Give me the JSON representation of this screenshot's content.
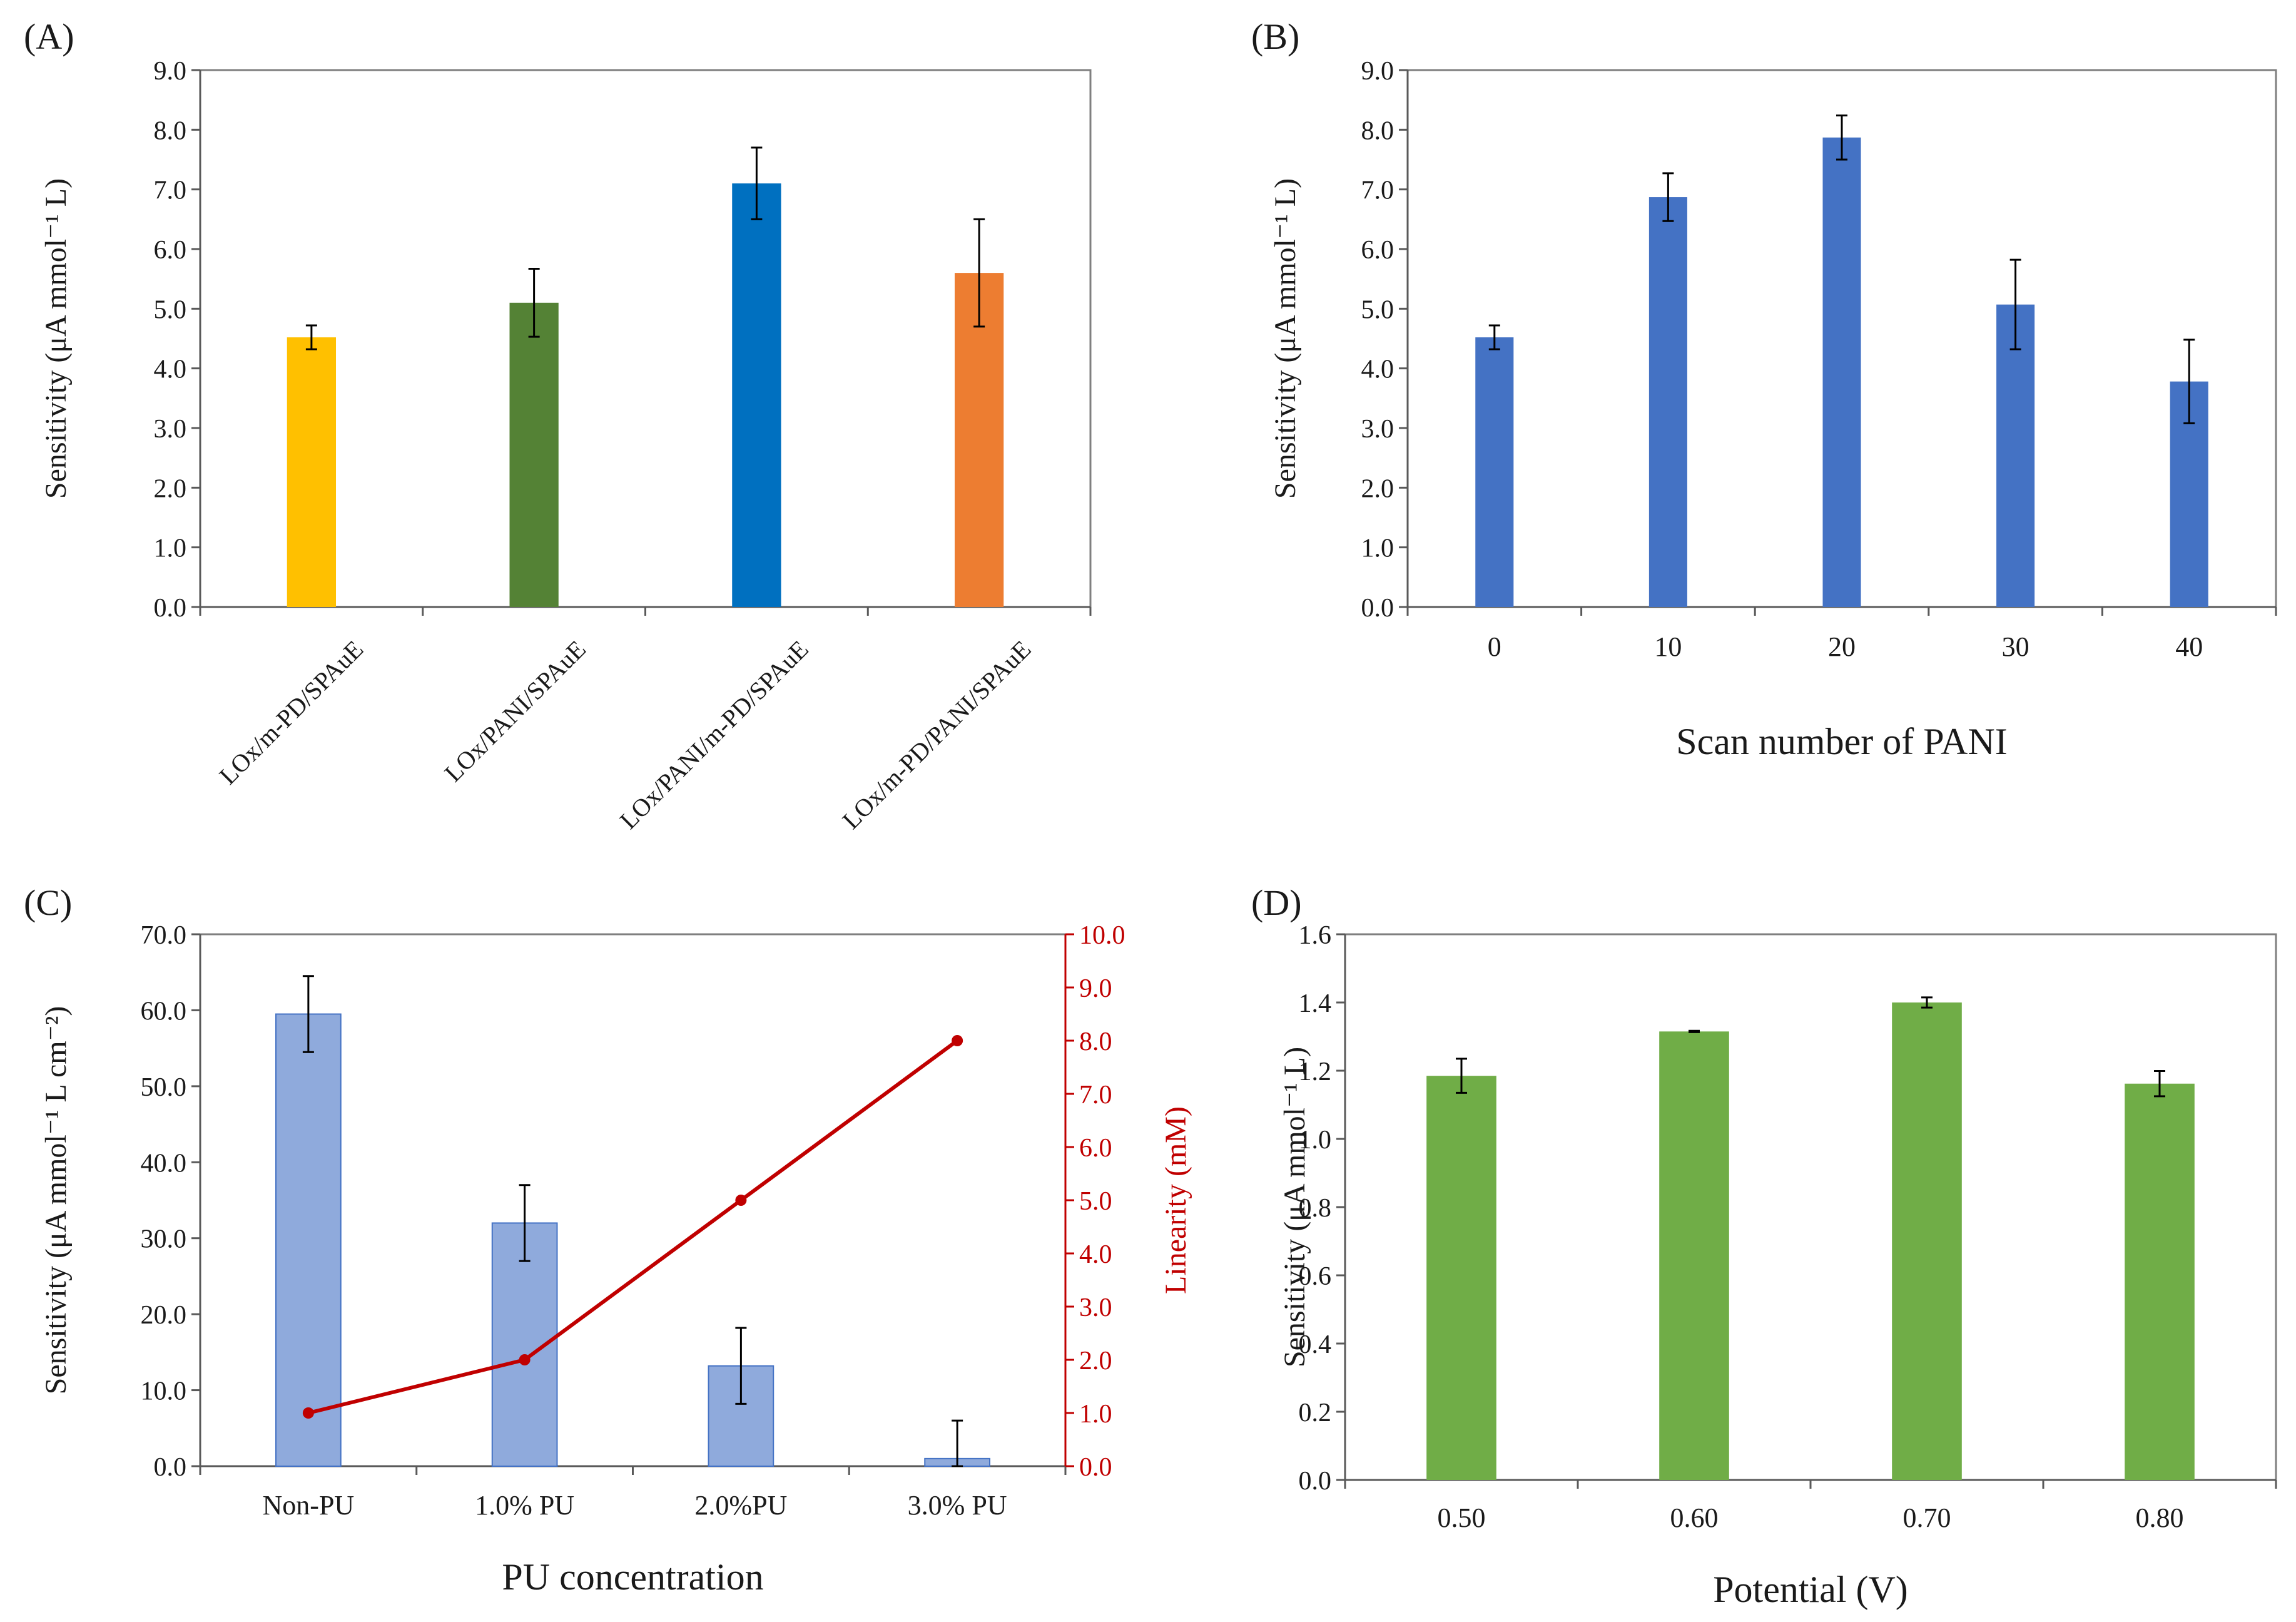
{
  "chart_data": [
    {
      "panel": "(A)",
      "type": "bar",
      "title": "",
      "xlabel": "",
      "ylabel": "Sensitivity (μA mmol⁻¹ L)",
      "categories": [
        "LOx/m-PD/SPAuE",
        "LOx/PANI/SPAuE",
        "LOx/PANI/m-PD/SPAuE",
        "LOx/m-PD/PANI/SPAuE"
      ],
      "values": [
        4.52,
        5.1,
        7.1,
        5.6
      ],
      "errors": [
        0.2,
        0.57,
        0.6,
        0.9
      ],
      "bar_colors": [
        "#ffc000",
        "#548235",
        "#0070c0",
        "#ed7d31"
      ],
      "ylim": [
        0,
        9
      ],
      "yticks": [
        "0.0",
        "1.0",
        "2.0",
        "3.0",
        "4.0",
        "5.0",
        "6.0",
        "7.0",
        "8.0",
        "9.0"
      ],
      "grid": false
    },
    {
      "panel": "(B)",
      "type": "bar",
      "title": "",
      "xlabel": "Scan number of PANI",
      "ylabel": "Sensitivity (μA mmol⁻¹ L)",
      "categories": [
        "0",
        "10",
        "20",
        "30",
        "40"
      ],
      "values": [
        4.52,
        6.87,
        7.87,
        5.07,
        3.78
      ],
      "errors": [
        0.2,
        0.4,
        0.37,
        0.75,
        0.7
      ],
      "bar_colors": [
        "#4472c4"
      ],
      "ylim": [
        0,
        9
      ],
      "yticks": [
        "0.0",
        "1.0",
        "2.0",
        "3.0",
        "4.0",
        "5.0",
        "6.0",
        "7.0",
        "8.0",
        "9.0"
      ],
      "grid": false
    },
    {
      "panel": "(C)",
      "type": "bar",
      "title": "",
      "xlabel": "PU concentration",
      "ylabel": "Sensitivity (μA mmol⁻¹ L cm⁻²)",
      "categories": [
        "Non-PU",
        "1.0% PU",
        "2.0%PU",
        "3.0% PU"
      ],
      "values": [
        59.5,
        32.0,
        13.2,
        1.0
      ],
      "errors": [
        5.0,
        5.0,
        5.0,
        5.0
      ],
      "bar_colors": [
        "#8faadc"
      ],
      "ylim": [
        0,
        70
      ],
      "yticks": [
        "0.0",
        "10.0",
        "20.0",
        "30.0",
        "40.0",
        "50.0",
        "60.0",
        "70.0"
      ],
      "secondary": {
        "type": "line",
        "name": "Linearity",
        "ylabel": "Linearity (mM)",
        "values": [
          1,
          2,
          5,
          8
        ],
        "color": "#c00000",
        "ylim": [
          0,
          10
        ],
        "yticks": [
          "0.0",
          "1.0",
          "2.0",
          "3.0",
          "4.0",
          "5.0",
          "6.0",
          "7.0",
          "8.0",
          "9.0",
          "10.0"
        ]
      },
      "grid": false
    },
    {
      "panel": "(D)",
      "type": "bar",
      "title": "",
      "xlabel": "Potential (V)",
      "ylabel": "Sensitivity (μA mmol⁻¹ L)",
      "categories": [
        "0.50",
        "0.60",
        "0.70",
        "0.80"
      ],
      "values": [
        1.185,
        1.315,
        1.4,
        1.162
      ],
      "errors": [
        0.05,
        0.002,
        0.015,
        0.037
      ],
      "bar_colors": [
        "#70ad47"
      ],
      "ylim": [
        0,
        1.6
      ],
      "yticks": [
        "0.0",
        "0.2",
        "0.4",
        "0.6",
        "0.8",
        "1.0",
        "1.2",
        "1.4",
        "1.6"
      ],
      "grid": false
    }
  ]
}
